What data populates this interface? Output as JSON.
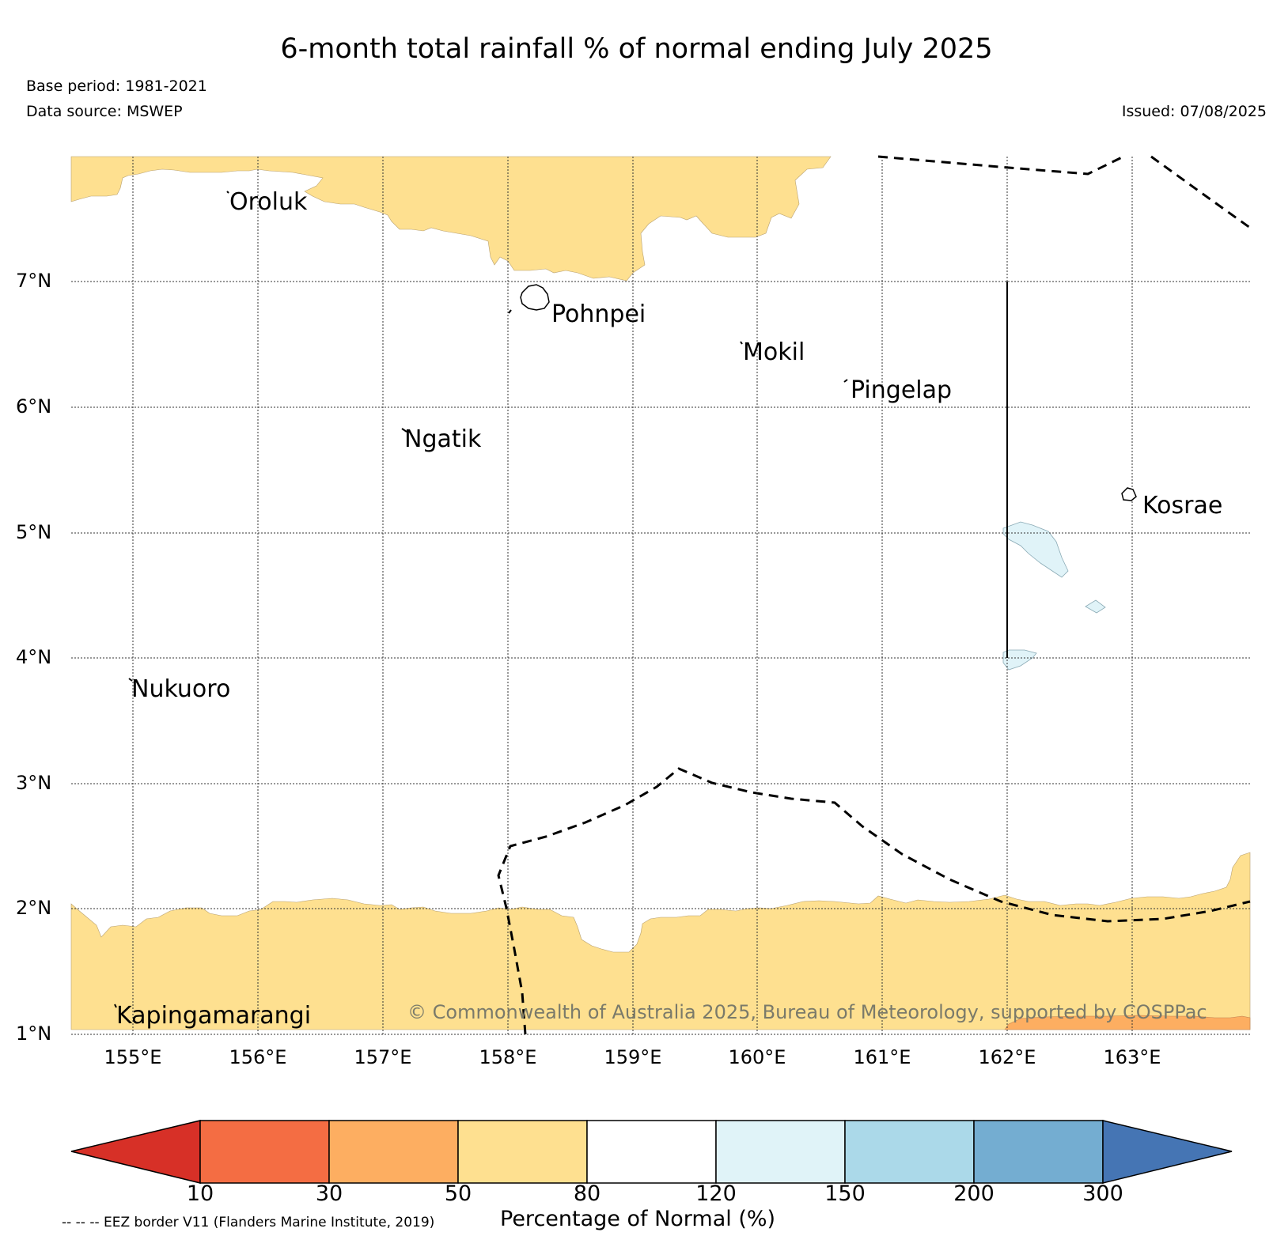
{
  "title": "6-month total rainfall % of normal ending July 2025",
  "base_period": "Base period: 1981-2021",
  "data_source": "Data source: MSWEP",
  "issued": "Issued: 07/08/2025",
  "latitude_labels": [
    "7°N",
    "6°N",
    "5°N",
    "4°N",
    "3°N",
    "2°N",
    "1°N"
  ],
  "longitude_labels": [
    "155°E",
    "156°E",
    "157°E",
    "158°E",
    "159°E",
    "160°E",
    "161°E",
    "162°E",
    "163°E"
  ],
  "islands": {
    "oroluk": "Oroluk",
    "pohnpei": "Pohnpei",
    "mokil": "Mokil",
    "pingelap": "Pingelap",
    "ngatik": "Ngatik",
    "kosrae": "Kosrae",
    "nukuoro": "Nukuoro",
    "kapingamarangi": "Kapingamarangi"
  },
  "copyright": "© Commonwealth of Australia 2025, Bureau of Meteorology, supported by COSPPac",
  "colorbar": {
    "label": "Percentage of Normal (%)",
    "ticks": [
      "10",
      "30",
      "50",
      "80",
      "120",
      "150",
      "200",
      "300"
    ],
    "colors": {
      "below_10": "#d73027",
      "10_30": "#f46d43",
      "30_50": "#fdae61",
      "50_80": "#fee090",
      "80_120": "#ffffff",
      "120_150": "#e0f3f8",
      "150_200": "#abd9e9",
      "200_300": "#74add1",
      "above_300": "#4575b4"
    }
  },
  "eez_note": "-- -- -- EEZ border V11 (Flanders Marine Institute, 2019)"
}
